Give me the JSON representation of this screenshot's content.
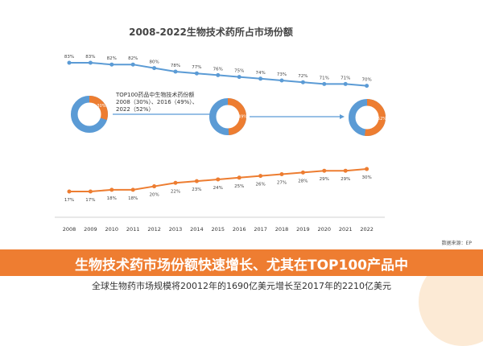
{
  "chart_data": {
    "type": "line",
    "title": "2008-2022生物技术药所占市场份额",
    "x": [
      "2008",
      "2009",
      "2010",
      "2011",
      "2012",
      "2013",
      "2014",
      "2015",
      "2016",
      "2017",
      "2018",
      "2019",
      "2020",
      "2021",
      "2022"
    ],
    "series": [
      {
        "values": [
          83,
          83,
          82,
          82,
          80,
          78,
          77,
          76,
          75,
          74,
          73,
          72,
          71,
          71,
          70
        ],
        "labels": [
          "83%",
          "83%",
          "82%",
          "82%",
          "80%",
          "78%",
          "77%",
          "76%",
          "75%",
          "74%",
          "73%",
          "72%",
          "71%",
          "71%",
          "70%"
        ]
      },
      {
        "values": [
          17,
          17,
          18,
          18,
          20,
          22,
          23,
          24,
          25,
          26,
          27,
          28,
          29,
          29,
          30
        ],
        "labels": [
          "17%",
          "17%",
          "18%",
          "18%",
          "20%",
          "22%",
          "23%",
          "24%",
          "25%",
          "26%",
          "27%",
          "28%",
          "29%",
          "29%",
          "30%"
        ]
      }
    ],
    "annotation": [
      "TOP100药品中生物技术药份额",
      "2008（30%）、2016（49%）、",
      "2022（52%）"
    ],
    "donuts": [
      {
        "orange": 0.3,
        "blue": 0.7,
        "label": "30%"
      },
      {
        "orange": 0.49,
        "blue": 0.51,
        "label": "49%"
      },
      {
        "orange": 0.52,
        "blue": 0.48,
        "label": "52%"
      }
    ],
    "grid": false,
    "legend": "none"
  },
  "colors": {
    "blue": "#5b9bd5",
    "orange": "#ed7d31",
    "accent": "#ee7d31"
  },
  "source": "数据来源：EP",
  "banner": "生物技术药市场份额快速增长、尤其在TOP100产品中",
  "subtitle": "全球生物药市场规模将20012年的1690亿美元增长至2017年的2210亿美元"
}
